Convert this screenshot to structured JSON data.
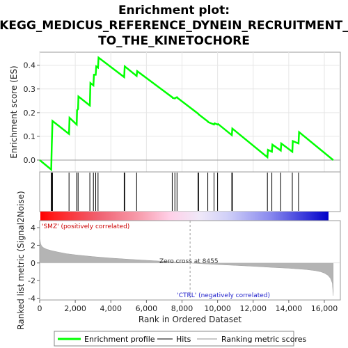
{
  "chart_data": {
    "type": "line",
    "title_lines": [
      "Enrichment plot:",
      "KEGG_MEDICUS_REFERENCE_DYNEIN_RECRUITMENT_",
      "TO_THE_KINETOCHORE"
    ],
    "es_ylabel": "Enrichment score (ES)",
    "es_yticks": [
      0.0,
      0.1,
      0.2,
      0.3,
      0.4
    ],
    "es_ylim": [
      -0.05,
      0.455
    ],
    "xlabel": "Rank in Ordered Dataset",
    "xlim": [
      0,
      16900
    ],
    "xticks": [
      0,
      2000,
      4000,
      6000,
      8000,
      10000,
      12000,
      14000,
      16000
    ],
    "xtick_labels": [
      "0",
      "2,000",
      "4,000",
      "6,000",
      "8,000",
      "10,000",
      "12,000",
      "14,000",
      "16,000"
    ],
    "ranked_ylabel_lines": [
      "Ranked list metric (Signal2Noise)"
    ],
    "ranked_yticks": [
      4,
      2,
      0,
      -2,
      -4
    ],
    "ranked_ylim": [
      -4.2,
      4.8
    ],
    "series": [
      {
        "name": "Enrichment profile",
        "color": "#00ff00",
        "x": [
          0,
          650,
          680,
          720,
          1650,
          1680,
          2080,
          2100,
          2160,
          2180,
          2820,
          2850,
          3020,
          3050,
          3150,
          3180,
          3280,
          3310,
          4750,
          4780,
          5450,
          5480,
          7450,
          7480,
          7600,
          7630,
          7720,
          7750,
          8900,
          8930,
          9450,
          9480,
          9800,
          9830,
          10000,
          10030,
          10800,
          10830,
          12800,
          12830,
          13050,
          13080,
          13550,
          13580,
          14200,
          14230,
          14550,
          14580,
          16500
        ],
        "y": [
          0.0,
          -0.04,
          0.065,
          0.165,
          0.11,
          0.178,
          0.15,
          0.21,
          0.215,
          0.268,
          0.23,
          0.325,
          0.315,
          0.36,
          0.36,
          0.395,
          0.39,
          0.432,
          0.35,
          0.395,
          0.355,
          0.375,
          0.265,
          0.262,
          0.26,
          0.262,
          0.265,
          0.262,
          0.196,
          0.193,
          0.163,
          0.16,
          0.15,
          0.155,
          0.15,
          0.152,
          0.105,
          0.133,
          0.012,
          0.043,
          0.035,
          0.065,
          0.04,
          0.07,
          0.035,
          0.08,
          0.07,
          0.118,
          0.0
        ]
      }
    ],
    "hits": [
      650,
      680,
      720,
      1650,
      2080,
      2160,
      2820,
      3020,
      3150,
      3280,
      4750,
      4780,
      5450,
      7450,
      7600,
      7720,
      8900,
      8930,
      9450,
      9800,
      10000,
      10800,
      10830,
      12800,
      13050,
      13550,
      14200,
      14550
    ],
    "ranked_metric": {
      "x": [
        0,
        50,
        100,
        200,
        400,
        700,
        1000,
        1500,
        2000,
        3000,
        4000,
        5000,
        6000,
        7000,
        8000,
        8455,
        9000,
        10000,
        11000,
        12000,
        13000,
        14000,
        15000,
        15500,
        15800,
        16000,
        16200,
        16350,
        16450,
        16500,
        16500
      ],
      "y": [
        2.9,
        2.2,
        1.95,
        1.75,
        1.55,
        1.38,
        1.25,
        1.05,
        0.92,
        0.72,
        0.55,
        0.42,
        0.3,
        0.18,
        0.07,
        0.0,
        -0.07,
        -0.18,
        -0.28,
        -0.38,
        -0.5,
        -0.6,
        -0.75,
        -0.88,
        -1.0,
        -1.15,
        -1.4,
        -1.75,
        -2.3,
        -3.7,
        0.0
      ]
    },
    "zero_cross_label": "Zero cross at 8455",
    "pos_label": "'SMZ' (positively correlated)",
    "neg_label": "'CTRL' (negatively correlated)",
    "legend": [
      {
        "label": "Enrichment profile",
        "color": "#00ff00"
      },
      {
        "label": "Hits",
        "color": "#000000"
      },
      {
        "label": "Ranking metric scores",
        "color": "#c8c8c8"
      }
    ]
  }
}
